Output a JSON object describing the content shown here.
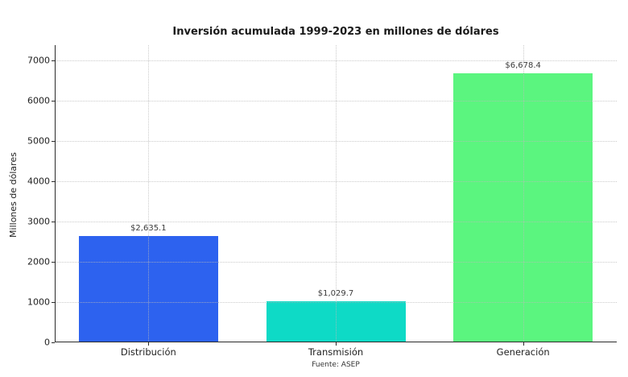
{
  "chart_data": {
    "type": "bar",
    "title": "Inversión acumulada 1999-2023 en millones de dólares",
    "xlabel": "",
    "ylabel": "Millones de dólares",
    "categories": [
      "Distribución",
      "Transmisión",
      "Generación"
    ],
    "values": [
      2635.1,
      1029.7,
      6678.4
    ],
    "value_labels": [
      "$2,635.1",
      "$1,029.7",
      "$6,678.4"
    ],
    "bar_colors": [
      "#2d62ef",
      "#0edac6",
      "#5bf57f"
    ],
    "yticks": [
      0,
      1000,
      2000,
      3000,
      4000,
      5000,
      6000,
      7000
    ],
    "ylim": [
      0,
      7380
    ],
    "grid": true,
    "grid_style": "dotted",
    "legend": "none",
    "source_note": "Fuente: ASEP"
  }
}
